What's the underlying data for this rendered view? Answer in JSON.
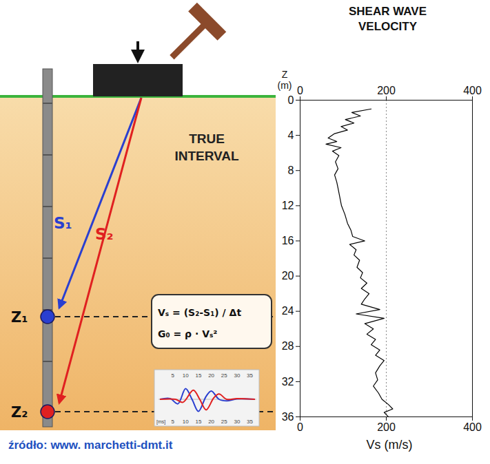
{
  "diagram": {
    "heading": "TRUE INTERVAL",
    "rays": [
      {
        "label": "S₁",
        "color": "#2a3fd0"
      },
      {
        "label": "S₂",
        "color": "#e02020"
      }
    ],
    "depths": [
      {
        "label": "Z₁",
        "color": "#2a3fd0"
      },
      {
        "label": "Z₂",
        "color": "#e02020"
      }
    ],
    "formulas": [
      "Vₛ = (S₂-S₁) / Δt",
      "G₀ = ρ · Vₛ²"
    ],
    "inset": {
      "unit": "[ms]",
      "xlim": [
        0,
        37
      ],
      "ylim": [
        -1,
        1
      ],
      "xticks": [
        5,
        10,
        15,
        20,
        25,
        30,
        35
      ],
      "series": [
        {
          "color": "#2a3fd0",
          "x": [
            0,
            4,
            7,
            10,
            12.5,
            15,
            18,
            20,
            23,
            26,
            30,
            37
          ],
          "values": [
            0,
            0.05,
            -0.3,
            0.7,
            0,
            -0.8,
            0.2,
            0.55,
            0,
            -0.1,
            0.02,
            0
          ]
        },
        {
          "color": "#e02020",
          "x": [
            0,
            6,
            9,
            13,
            15.5,
            18,
            21,
            23,
            26,
            30,
            37
          ],
          "values": [
            0,
            0,
            -0.2,
            0.6,
            0,
            -0.7,
            0.1,
            0.35,
            0,
            0.05,
            0
          ]
        }
      ]
    }
  },
  "caption": "źródło: www. marchetti-dmt.it",
  "chart_data": {
    "type": "line",
    "title": "SHEAR WAVE VELOCITY",
    "xlabel": "Vs (m/s)",
    "ylabel": "Z (m)",
    "xlim": [
      0,
      400
    ],
    "xticks": [
      0,
      200,
      400
    ],
    "ylim": [
      0,
      36
    ],
    "yticks": [
      0,
      4,
      8,
      12,
      16,
      20,
      24,
      28,
      32,
      36
    ],
    "grid": true,
    "color": "#000000",
    "x": [
      165,
      120,
      140,
      105,
      125,
      95,
      110,
      80,
      65,
      85,
      60,
      95,
      75,
      90,
      82,
      88,
      80,
      85,
      88,
      92,
      96,
      104,
      110,
      118,
      122,
      150,
      115,
      130,
      125,
      138,
      132,
      145,
      140,
      155,
      142,
      160,
      150,
      142,
      185,
      130,
      195,
      150,
      170,
      155,
      175,
      165,
      185,
      175,
      195,
      185,
      175,
      180,
      170,
      182,
      190,
      205,
      215,
      195,
      205
    ],
    "y": [
      1.0,
      1.4,
      1.8,
      2.2,
      2.6,
      3.0,
      3.4,
      3.8,
      4.3,
      4.7,
      5.0,
      5.4,
      5.8,
      6.3,
      7,
      7.8,
      8.5,
      9.3,
      10,
      11,
      12,
      13,
      14,
      14.8,
      15.5,
      16.0,
      16.4,
      17,
      17.6,
      18.2,
      19,
      19.6,
      20.2,
      20.8,
      21.4,
      22,
      22.6,
      23.2,
      23.8,
      24.3,
      24.8,
      25.4,
      26,
      26.6,
      27.2,
      27.8,
      28.4,
      29,
      29.6,
      30.2,
      31,
      31.8,
      32.5,
      33.3,
      34,
      34.6,
      35.1,
      35.5,
      36
    ]
  }
}
